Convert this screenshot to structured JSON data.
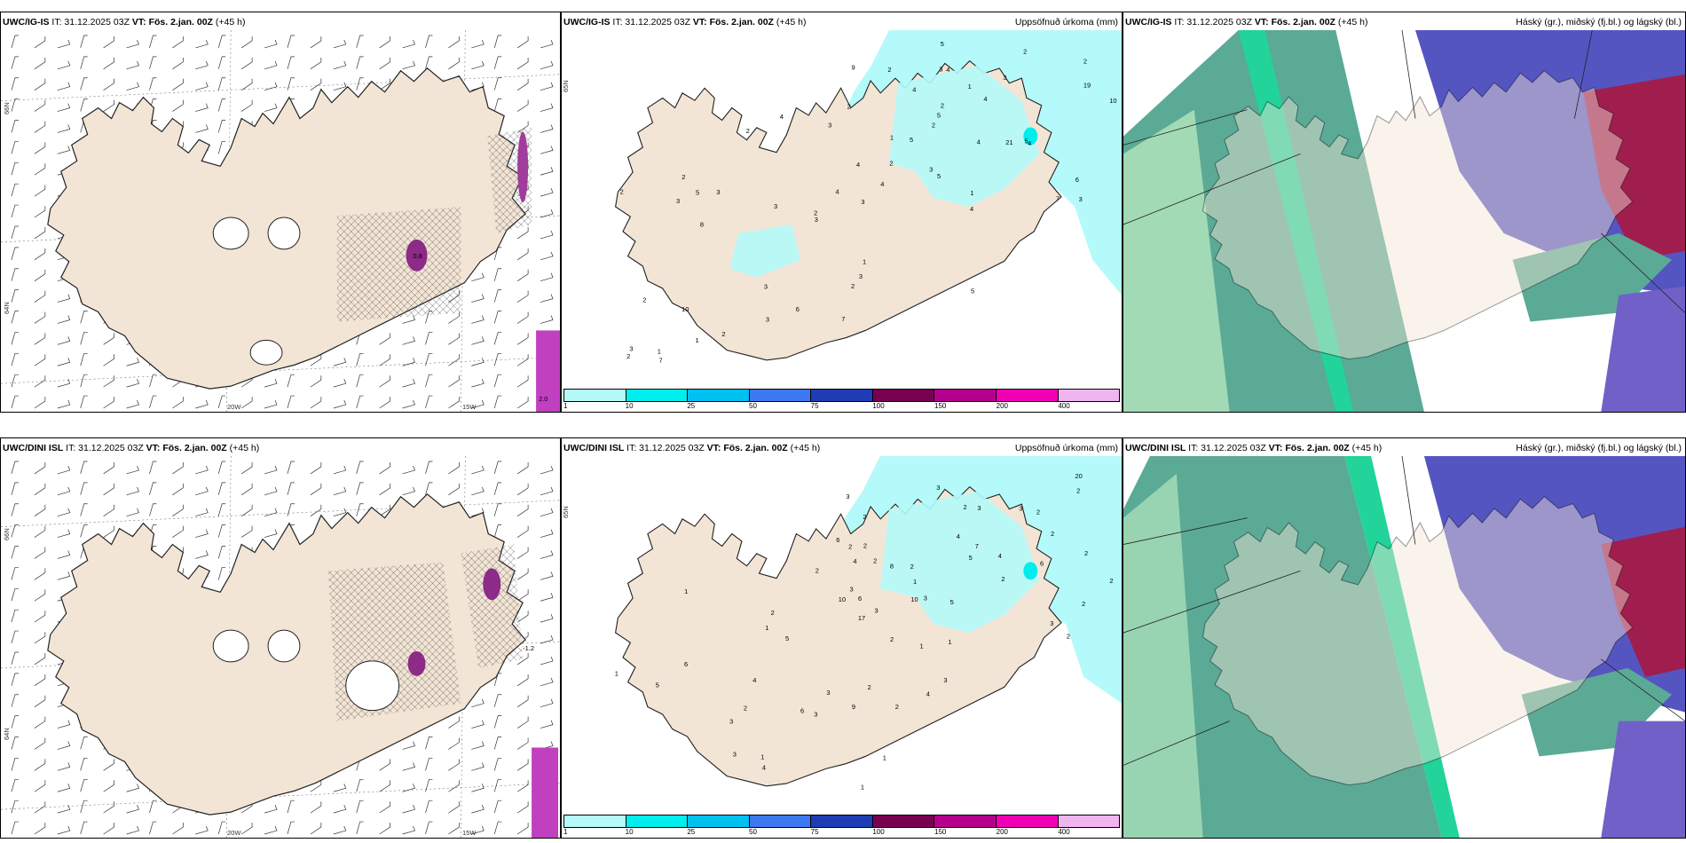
{
  "common": {
    "issue": "IT: 31.12.2025 03Z",
    "valid_prefix": "VT:",
    "valid": "Fös. 2.jan. 00Z",
    "lead": "(+45 h)"
  },
  "rows": [
    {
      "model": "UWC/IG-IS"
    },
    {
      "model": "UWC/DINI ISL"
    }
  ],
  "precip_title": "Uppsöfnuð úrkoma (mm)",
  "cloud_title": "Háský (gr.), miðský (fj.bl.) og lágský (bl.)",
  "colorbar": {
    "labels": [
      "1",
      "10",
      "25",
      "50",
      "75",
      "100",
      "150",
      "200",
      "400"
    ],
    "colors": [
      "#b4fafa",
      "#00eded",
      "#00c0f0",
      "#3c78f0",
      "#1e3cb4",
      "#780050",
      "#b4008c",
      "#f000b4",
      "#f0b4f0"
    ]
  },
  "grid_labels": {
    "lat": [
      "66N",
      "64N",
      "65N",
      "66N",
      "64N",
      "65N"
    ],
    "lon": [
      "20W",
      "15W",
      "25W"
    ]
  },
  "wind_values": {
    "top": [
      "0.8",
      "2.0"
    ],
    "bottom": [
      "-1.2"
    ]
  },
  "precip_values_top": [
    "3",
    "2",
    "2",
    "2",
    "3",
    "3",
    "3",
    "1",
    "4",
    "4",
    "4",
    "4",
    "4",
    "4",
    "4",
    "9",
    "5",
    "10",
    "21",
    "19",
    "5",
    "5",
    "2",
    "2",
    "2",
    "2",
    "7",
    "6",
    "5",
    "4",
    "3",
    "3",
    "2",
    "1",
    "1",
    "2",
    "3",
    "3",
    "3",
    "2",
    "3",
    "4",
    "3",
    "7",
    "10",
    "7",
    "2",
    "6",
    "5",
    "4",
    "8",
    "2",
    "2",
    "1",
    "1",
    "3",
    "2",
    "3",
    "5",
    "3",
    "2",
    "1",
    "5"
  ],
  "precip_values_bottom": [
    "2",
    "2",
    "2",
    "3",
    "2",
    "2",
    "3",
    "2",
    "2",
    "2",
    "3",
    "3",
    "3",
    "3",
    "4",
    "3",
    "6",
    "7",
    "6",
    "17",
    "20",
    "3",
    "2",
    "2",
    "2",
    "2",
    "8",
    "5",
    "4",
    "2",
    "9",
    "5",
    "3",
    "6",
    "2",
    "4",
    "3",
    "1",
    "1",
    "1",
    "2",
    "3",
    "3",
    "2",
    "4",
    "6",
    "5",
    "4",
    "10",
    "6",
    "2",
    "1",
    "2",
    "1",
    "1",
    "1",
    "4",
    "5",
    "3",
    "2",
    "1",
    "10",
    "1",
    "2"
  ]
}
